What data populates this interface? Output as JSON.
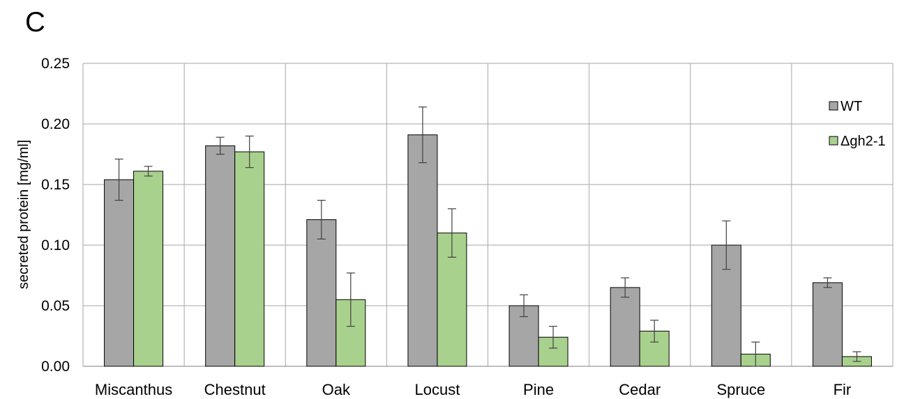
{
  "chart_data": {
    "type": "bar",
    "panel_label": "C",
    "title": "",
    "xlabel": "",
    "ylabel": "secreted protein [mg/ml]",
    "ylim": [
      0,
      0.25
    ],
    "yticks": [
      "0.00",
      "0.05",
      "0.10",
      "0.15",
      "0.20",
      "0.25"
    ],
    "grid": true,
    "legend_position": "top-right",
    "categories": [
      "Miscanthus",
      "Chestnut",
      "Oak",
      "Locust",
      "Pine",
      "Cedar",
      "Spruce",
      "Fir"
    ],
    "series": [
      {
        "name": "WT",
        "color": "#a6a6a6",
        "values": [
          0.154,
          0.182,
          0.121,
          0.191,
          0.05,
          0.065,
          0.1,
          0.069
        ],
        "errors": [
          0.017,
          0.007,
          0.016,
          0.023,
          0.009,
          0.008,
          0.02,
          0.004
        ]
      },
      {
        "name": "Δgh2-1",
        "color": "#a9d18e",
        "values": [
          0.161,
          0.177,
          0.055,
          0.11,
          0.024,
          0.029,
          0.01,
          0.008
        ],
        "errors": [
          0.004,
          0.013,
          0.022,
          0.02,
          0.009,
          0.009,
          0.01,
          0.004
        ]
      }
    ]
  }
}
